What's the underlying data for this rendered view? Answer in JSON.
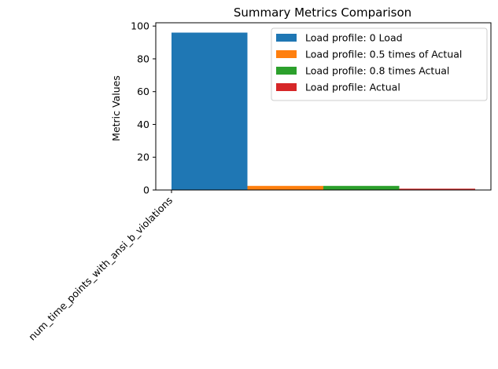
{
  "chart_data": {
    "type": "bar",
    "title": "Summary Metrics Comparison",
    "xlabel": "",
    "ylabel": "Metric Values",
    "categories": [
      "num_time_points_with_ansi_b_violations"
    ],
    "series": [
      {
        "name": "Load profile: 0 Load",
        "values": [
          96
        ],
        "color": "#1f77b4"
      },
      {
        "name": "Load profile: 0.5 times of Actual",
        "values": [
          2.5
        ],
        "color": "#ff7f0e"
      },
      {
        "name": "Load profile: 0.8 times Actual",
        "values": [
          2.5
        ],
        "color": "#2ca02c"
      },
      {
        "name": "Load profile: Actual",
        "values": [
          0.8
        ],
        "color": "#d62728"
      }
    ],
    "ylim": [
      0,
      102
    ],
    "yticks": [
      "0",
      "20",
      "40",
      "60",
      "80",
      "100"
    ],
    "grid": false,
    "legend_position": "top-right"
  }
}
